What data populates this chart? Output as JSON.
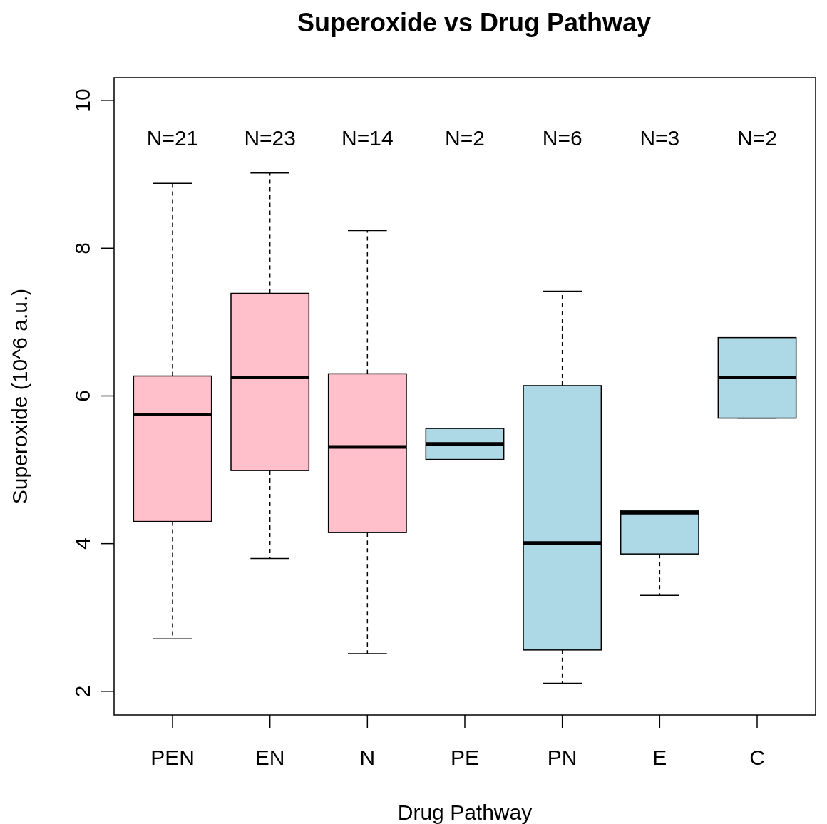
{
  "chart_data": {
    "type": "box",
    "title": "Superoxide vs Drug Pathway",
    "xlabel": "Drug Pathway",
    "ylabel": "Superoxide (10^6 a.u.)",
    "categories": [
      "PEN",
      "EN",
      "N",
      "PE",
      "PN",
      "E",
      "C"
    ],
    "colors": [
      "#ffc0cb",
      "#ffc0cb",
      "#ffc0cb",
      "#add8e6",
      "#add8e6",
      "#add8e6",
      "#add8e6"
    ],
    "boxes": [
      {
        "low": 2.71,
        "q1": 4.3,
        "median": 5.75,
        "q3": 6.27,
        "high": 8.88
      },
      {
        "low": 3.8,
        "q1": 4.99,
        "median": 6.25,
        "q3": 7.39,
        "high": 9.02
      },
      {
        "low": 2.51,
        "q1": 4.15,
        "median": 5.31,
        "q3": 6.3,
        "high": 8.24
      },
      {
        "low": 5.14,
        "q1": 5.14,
        "median": 5.35,
        "q3": 5.56,
        "high": 5.56
      },
      {
        "low": 2.11,
        "q1": 2.56,
        "median": 4.01,
        "q3": 6.14,
        "high": 7.42
      },
      {
        "low": 3.3,
        "q1": 3.86,
        "median": 4.42,
        "q3": 4.45,
        "high": 4.45
      },
      {
        "low": 5.7,
        "q1": 5.7,
        "median": 6.25,
        "q3": 6.79,
        "high": 6.79
      }
    ],
    "line_style": "dashed",
    "ylim": [
      1.68,
      10.31
    ],
    "yticks": [
      2,
      4,
      6,
      8,
      10
    ],
    "annotations": [
      "N=21",
      "N=23",
      "N=14",
      "N=2",
      "N=6",
      "N=3",
      "N=2"
    ]
  }
}
